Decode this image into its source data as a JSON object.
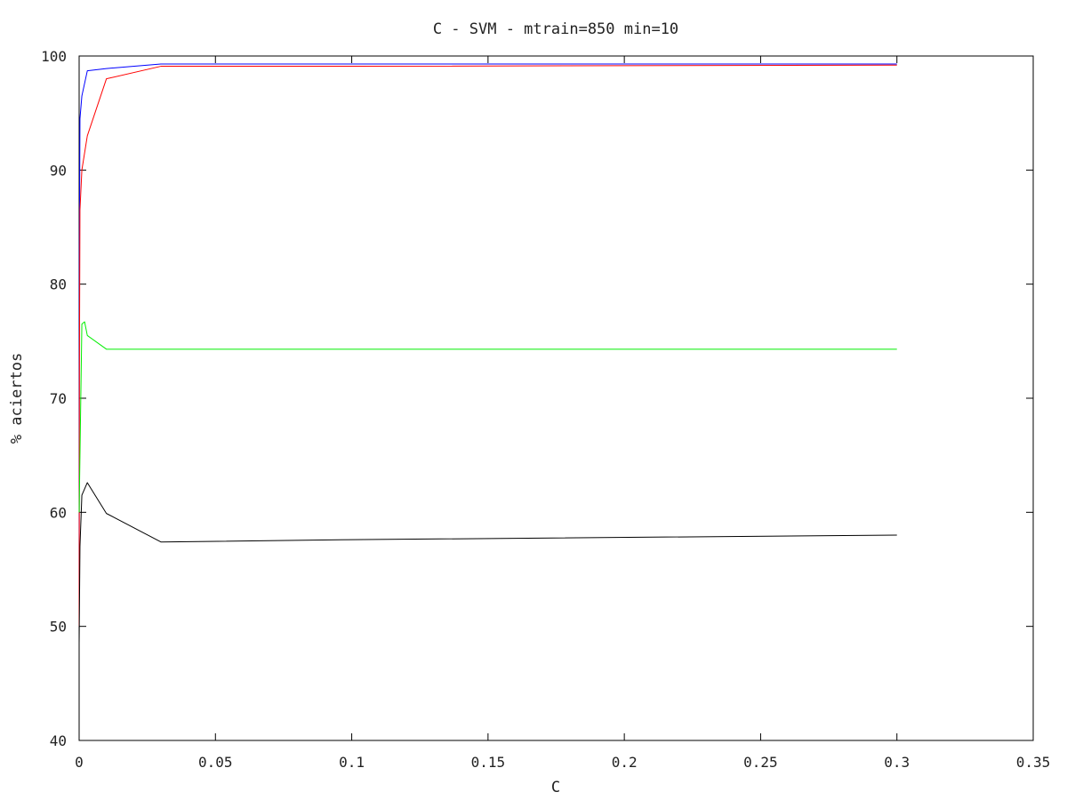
{
  "chart_data": {
    "type": "line",
    "title": "C - SVM - mtrain=850 min=10",
    "xlabel": "C",
    "ylabel": "% aciertos",
    "xlim": [
      0,
      0.35
    ],
    "ylim": [
      40,
      100
    ],
    "xticks": [
      0,
      0.05,
      0.1,
      0.15,
      0.2,
      0.25,
      0.3,
      0.35
    ],
    "xtick_labels": [
      "0",
      "0.05",
      "0.1",
      "0.15",
      "0.2",
      "0.25",
      "0.3",
      "0.35"
    ],
    "yticks": [
      40,
      50,
      60,
      70,
      80,
      90,
      100
    ],
    "ytick_labels": [
      "40",
      "50",
      "60",
      "70",
      "80",
      "90",
      "100"
    ],
    "grid": false,
    "legend": "none",
    "series": [
      {
        "color": "#0000ff",
        "x": [
          0,
          0.0001,
          0.0003,
          0.001,
          0.003,
          0.01,
          0.03,
          0.1,
          0.3
        ],
        "y": [
          50.0,
          83.0,
          94.5,
          96.5,
          98.7,
          98.9,
          99.3,
          99.3,
          99.3
        ]
      },
      {
        "color": "#ff0000",
        "x": [
          0,
          0.0001,
          0.0003,
          0.001,
          0.003,
          0.01,
          0.03,
          0.1,
          0.3
        ],
        "y": [
          50.0,
          72.0,
          86.5,
          90.0,
          93.0,
          98.0,
          99.1,
          99.1,
          99.2
        ]
      },
      {
        "color": "#00ee00",
        "x": [
          0,
          0.0003,
          0.001,
          0.002,
          0.003,
          0.01,
          0.03,
          0.1,
          0.3
        ],
        "y": [
          60.0,
          65.0,
          76.5,
          76.7,
          75.5,
          74.3,
          74.3,
          74.3,
          74.3
        ]
      },
      {
        "color": "#000000",
        "x": [
          0,
          0.0003,
          0.001,
          0.003,
          0.01,
          0.03,
          0.1,
          0.3
        ],
        "y": [
          48.5,
          57.0,
          61.5,
          62.6,
          59.9,
          57.4,
          57.6,
          58.0
        ]
      }
    ]
  }
}
